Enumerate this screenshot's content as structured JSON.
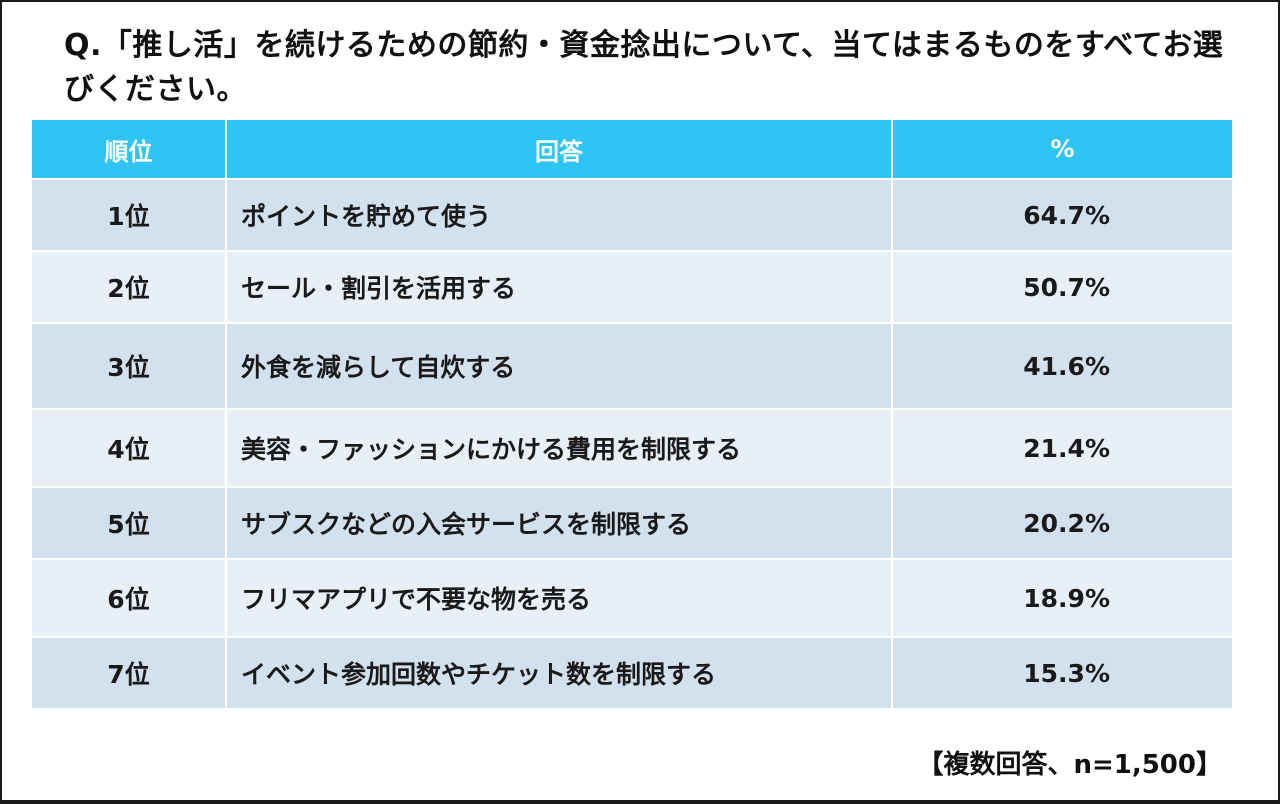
{
  "question": "Q.「推し活」を続けるための節約・資金捻出について、当てはまるものをすべてお選びください。",
  "columns": {
    "rank": "順位",
    "answer": "回答",
    "percent": "%"
  },
  "rows": [
    {
      "rank": "1位",
      "answer": "ポイントを貯めて使う",
      "percent": "64.7%"
    },
    {
      "rank": "2位",
      "answer": "セール・割引を活用する",
      "percent": "50.7%"
    },
    {
      "rank": "3位",
      "answer": "外食を減らして自炊する",
      "percent": "41.6%"
    },
    {
      "rank": "4位",
      "answer": "美容・ファッションにかける費用を制限する",
      "percent": "21.4%"
    },
    {
      "rank": "5位",
      "answer": "サブスクなどの入会サービスを制限する",
      "percent": "20.2%"
    },
    {
      "rank": "6位",
      "answer": "フリマアプリで不要な物を売る",
      "percent": "18.9%"
    },
    {
      "rank": "7位",
      "answer": "イベント参加回数やチケット数を制限する",
      "percent": "15.3%"
    }
  ],
  "note": "【複数回答、n=1,500】",
  "colors": {
    "header_bg": "#2ec4f3",
    "row_odd": "#d3e0ee",
    "row_even": "#e9eff7"
  },
  "chart_data": {
    "type": "table",
    "title": "Q.「推し活」を続けるための節約・資金捻出について、当てはまるものをすべてお選びください。",
    "columns": [
      "順位",
      "回答",
      "%"
    ],
    "categories": [
      "ポイントを貯めて使う",
      "セール・割引を活用する",
      "外食を減らして自炊する",
      "美容・ファッションにかける費用を制限する",
      "サブスクなどの入会サービスを制限する",
      "フリマアプリで不要な物を売る",
      "イベント参加回数やチケット数を制限する"
    ],
    "ranks": [
      "1位",
      "2位",
      "3位",
      "4位",
      "5位",
      "6位",
      "7位"
    ],
    "values": [
      64.7,
      50.7,
      41.6,
      21.4,
      20.2,
      18.9,
      15.3
    ],
    "annotation": "【複数回答、n=1,500】"
  }
}
